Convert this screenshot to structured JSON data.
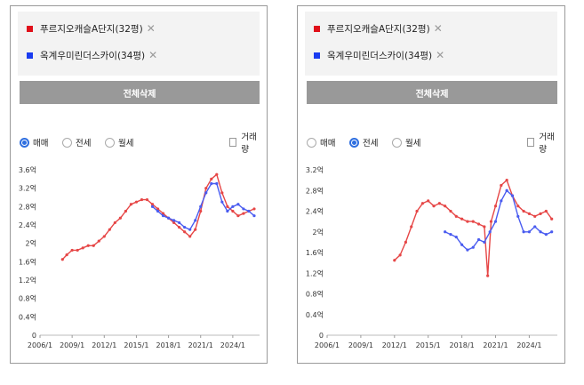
{
  "panels": [
    {
      "chips": [
        {
          "label": "푸르지오캐슬A단지(32평)",
          "color": "#e0101a"
        },
        {
          "label": "옥계우미린더스카이(34평)",
          "color": "#1a3cf0"
        }
      ],
      "delete_all_label": "전체삭제",
      "options": [
        "매매",
        "전세",
        "월세"
      ],
      "selected_option": "매매",
      "volume_label": "거래량",
      "chart_data": {
        "type": "line",
        "y_tick_labels": [
          "0",
          "0.4억",
          "0.8억",
          "1.2억",
          "1.6억",
          "2억",
          "2.4억",
          "2.8억",
          "3.2억",
          "3.6억"
        ],
        "x_tick_labels": [
          "2006/1",
          "2009/1",
          "2012/1",
          "2015/1",
          "2018/1",
          "2021/1",
          "2024/1"
        ],
        "ylim": [
          0,
          3.6
        ],
        "xlim": [
          2006,
          2026.5
        ],
        "series": [
          {
            "name": "푸르지오캐슬A단지(32평)",
            "color": "#e64646",
            "x": [
              2008.1,
              2008.5,
              2009.0,
              2009.5,
              2010.0,
              2010.5,
              2011.0,
              2011.5,
              2012.0,
              2012.5,
              2013.0,
              2013.5,
              2014.0,
              2014.5,
              2015.0,
              2015.5,
              2016.0,
              2016.5,
              2017.0,
              2017.5,
              2018.0,
              2018.5,
              2019.0,
              2019.5,
              2020.0,
              2020.5,
              2021.0,
              2021.5,
              2022.0,
              2022.5,
              2023.0,
              2023.5,
              2024.0,
              2024.5,
              2025.0,
              2025.5,
              2026.0
            ],
            "y": [
              1.65,
              1.75,
              1.85,
              1.85,
              1.9,
              1.95,
              1.95,
              2.05,
              2.15,
              2.3,
              2.45,
              2.55,
              2.7,
              2.85,
              2.9,
              2.95,
              2.95,
              2.85,
              2.75,
              2.65,
              2.55,
              2.45,
              2.35,
              2.25,
              2.15,
              2.3,
              2.7,
              3.2,
              3.4,
              3.5,
              3.1,
              2.8,
              2.7,
              2.6,
              2.65,
              2.7,
              2.75
            ]
          },
          {
            "name": "옥계우미린더스카이(34평)",
            "color": "#4a5cf0",
            "x": [
              2016.5,
              2017.0,
              2017.5,
              2018.0,
              2018.5,
              2019.0,
              2019.5,
              2020.0,
              2020.5,
              2021.0,
              2021.5,
              2022.0,
              2022.5,
              2023.0,
              2023.5,
              2024.0,
              2024.5,
              2025.0,
              2025.5,
              2026.0
            ],
            "y": [
              2.8,
              2.7,
              2.6,
              2.55,
              2.5,
              2.45,
              2.35,
              2.3,
              2.5,
              2.8,
              3.1,
              3.3,
              3.3,
              2.9,
              2.7,
              2.8,
              2.85,
              2.75,
              2.7,
              2.6
            ]
          }
        ]
      }
    },
    {
      "chips": [
        {
          "label": "푸르지오캐슬A단지(32평)",
          "color": "#e0101a"
        },
        {
          "label": "옥계우미린더스카이(34평)",
          "color": "#1a3cf0"
        }
      ],
      "delete_all_label": "전체삭제",
      "options": [
        "매매",
        "전세",
        "월세"
      ],
      "selected_option": "전세",
      "volume_label": "거래량",
      "chart_data": {
        "type": "line",
        "y_tick_labels": [
          "0",
          "0.4억",
          "0.8억",
          "1.2억",
          "1.6억",
          "2억",
          "2.4억",
          "2.8억",
          "3.2억"
        ],
        "x_tick_labels": [
          "2006/1",
          "2009/1",
          "2012/1",
          "2015/1",
          "2018/1",
          "2021/1",
          "2024/1"
        ],
        "ylim": [
          0,
          3.2
        ],
        "xlim": [
          2006,
          2026.5
        ],
        "series": [
          {
            "name": "푸르지오캐슬A단지(32평)",
            "color": "#e64646",
            "x": [
              2012.0,
              2012.5,
              2013.0,
              2013.5,
              2014.0,
              2014.5,
              2015.0,
              2015.5,
              2016.0,
              2016.5,
              2017.0,
              2017.5,
              2018.0,
              2018.5,
              2019.0,
              2019.5,
              2020.0,
              2020.3,
              2020.6,
              2021.0,
              2021.5,
              2022.0,
              2022.5,
              2023.0,
              2023.5,
              2024.0,
              2024.5,
              2025.0,
              2025.5,
              2026.0
            ],
            "y": [
              1.45,
              1.55,
              1.8,
              2.1,
              2.4,
              2.55,
              2.6,
              2.5,
              2.55,
              2.5,
              2.4,
              2.3,
              2.25,
              2.2,
              2.2,
              2.15,
              2.1,
              1.15,
              2.2,
              2.5,
              2.9,
              3.0,
              2.7,
              2.5,
              2.4,
              2.35,
              2.3,
              2.35,
              2.4,
              2.25
            ]
          },
          {
            "name": "옥계우미린더스카이(34평)",
            "color": "#4a5cf0",
            "x": [
              2016.5,
              2017.0,
              2017.5,
              2018.0,
              2018.5,
              2019.0,
              2019.5,
              2020.0,
              2020.5,
              2021.0,
              2021.5,
              2022.0,
              2022.5,
              2023.0,
              2023.5,
              2024.0,
              2024.5,
              2025.0,
              2025.5,
              2026.0
            ],
            "y": [
              2.0,
              1.95,
              1.9,
              1.75,
              1.65,
              1.7,
              1.85,
              1.8,
              2.0,
              2.2,
              2.6,
              2.8,
              2.7,
              2.3,
              2.0,
              2.0,
              2.1,
              2.0,
              1.95,
              2.0
            ]
          }
        ]
      }
    }
  ]
}
